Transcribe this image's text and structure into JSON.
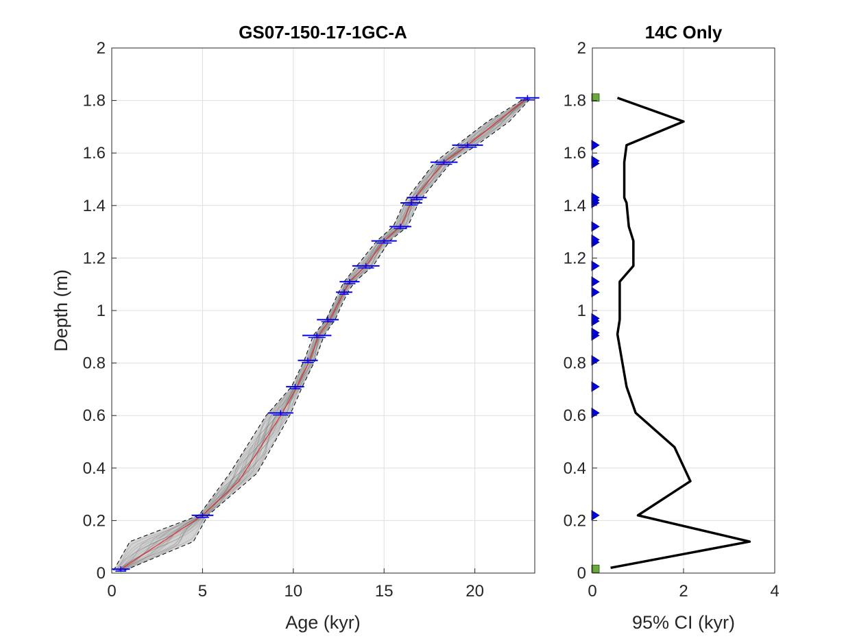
{
  "chart_data": [
    {
      "type": "line",
      "title": "GS07-150-17-1GC-A",
      "xlabel": "Age (kyr)",
      "ylabel": "Depth (m)",
      "xlim": [
        0,
        23.3
      ],
      "ylim": [
        0,
        2
      ],
      "xticks": [
        "0",
        "5",
        "10",
        "15",
        "20"
      ],
      "yticks": [
        "0",
        "0.2",
        "0.4",
        "0.6",
        "0.8",
        "1",
        "1.2",
        "1.4",
        "1.6",
        "1.8",
        "2"
      ],
      "grid": true,
      "colors": {
        "median": "#e03030",
        "bounds": "#000000",
        "ensemble": "#808080",
        "dates": "#0000ee"
      },
      "series": [
        {
          "values": [
            [
              0.4,
              0.01
            ],
            [
              5.0,
              0.22
            ],
            [
              7.0,
              0.35
            ],
            [
              9.4,
              0.61
            ],
            [
              10.2,
              0.71
            ],
            [
              10.9,
              0.81
            ],
            [
              11.4,
              0.905
            ],
            [
              12.0,
              0.965
            ],
            [
              12.8,
              1.07
            ],
            [
              13.1,
              1.11
            ],
            [
              14.0,
              1.17
            ],
            [
              15.0,
              1.265
            ],
            [
              15.9,
              1.32
            ],
            [
              16.5,
              1.41
            ],
            [
              16.7,
              1.43
            ],
            [
              18.3,
              1.565
            ],
            [
              19.6,
              1.63
            ],
            [
              22.9,
              1.81
            ]
          ]
        },
        {
          "values": [
            [
              0.1,
              0.01
            ],
            [
              1.0,
              0.12
            ],
            [
              4.8,
              0.22
            ],
            [
              6.5,
              0.38
            ],
            [
              8.5,
              0.6
            ],
            [
              9.9,
              0.71
            ],
            [
              10.6,
              0.81
            ],
            [
              11.1,
              0.905
            ],
            [
              11.8,
              0.965
            ],
            [
              12.5,
              1.07
            ],
            [
              12.8,
              1.11
            ],
            [
              13.5,
              1.17
            ],
            [
              14.6,
              1.265
            ],
            [
              15.5,
              1.32
            ],
            [
              16.1,
              1.41
            ],
            [
              16.3,
              1.43
            ],
            [
              17.8,
              1.565
            ],
            [
              19.0,
              1.63
            ],
            [
              20.7,
              1.72
            ],
            [
              22.8,
              1.81
            ]
          ]
        },
        {
          "values": [
            [
              0.7,
              0.01
            ],
            [
              4.5,
              0.12
            ],
            [
              5.3,
              0.22
            ],
            [
              8.0,
              0.38
            ],
            [
              9.8,
              0.6
            ],
            [
              10.5,
              0.71
            ],
            [
              11.2,
              0.81
            ],
            [
              11.7,
              0.905
            ],
            [
              12.3,
              0.965
            ],
            [
              13.0,
              1.07
            ],
            [
              13.4,
              1.11
            ],
            [
              14.4,
              1.17
            ],
            [
              15.3,
              1.265
            ],
            [
              16.3,
              1.32
            ],
            [
              16.9,
              1.41
            ],
            [
              17.1,
              1.43
            ],
            [
              18.7,
              1.565
            ],
            [
              20.1,
              1.63
            ],
            [
              21.9,
              1.72
            ],
            [
              23.1,
              1.81
            ]
          ]
        }
      ],
      "dates": [
        {
          "age": 0.5,
          "depth": 0.015,
          "err": 0.5
        },
        {
          "age": 5.0,
          "depth": 0.22,
          "err": 0.6
        },
        {
          "age": 9.3,
          "depth": 0.61,
          "err": 0.7
        },
        {
          "age": 10.1,
          "depth": 0.71,
          "err": 0.5
        },
        {
          "age": 10.8,
          "depth": 0.81,
          "err": 0.55
        },
        {
          "age": 11.3,
          "depth": 0.905,
          "err": 0.8
        },
        {
          "age": 11.9,
          "depth": 0.965,
          "err": 0.6
        },
        {
          "age": 12.8,
          "depth": 1.07,
          "err": 0.45
        },
        {
          "age": 13.1,
          "depth": 1.11,
          "err": 0.55
        },
        {
          "age": 14.0,
          "depth": 1.17,
          "err": 0.75
        },
        {
          "age": 15.0,
          "depth": 1.265,
          "err": 0.7
        },
        {
          "age": 15.9,
          "depth": 1.32,
          "err": 0.6
        },
        {
          "age": 16.5,
          "depth": 1.41,
          "err": 0.6
        },
        {
          "age": 16.8,
          "depth": 1.43,
          "err": 0.55
        },
        {
          "age": 18.3,
          "depth": 1.565,
          "err": 0.75
        },
        {
          "age": 19.6,
          "depth": 1.63,
          "err": 0.85
        },
        {
          "age": 22.9,
          "depth": 1.81,
          "err": 0.65
        }
      ]
    },
    {
      "type": "line",
      "title": "14C Only",
      "xlabel": "95% CI (kyr)",
      "ylabel": "",
      "xlim": [
        0,
        4
      ],
      "ylim": [
        0,
        2
      ],
      "xticks": [
        "0",
        "2",
        "4"
      ],
      "yticks": [
        "0",
        "0.2",
        "0.4",
        "0.6",
        "0.8",
        "1",
        "1.2",
        "1.4",
        "1.6",
        "1.8",
        "2"
      ],
      "grid": true,
      "colors": {
        "line": "#000000",
        "marker": "#0000ee",
        "square": "#6aaa3a"
      },
      "series": [
        {
          "values": [
            [
              0.4,
              0.02
            ],
            [
              3.45,
              0.12
            ],
            [
              1.0,
              0.22
            ],
            [
              2.15,
              0.35
            ],
            [
              1.8,
              0.48
            ],
            [
              0.95,
              0.61
            ],
            [
              0.75,
              0.71
            ],
            [
              0.65,
              0.81
            ],
            [
              0.55,
              0.91
            ],
            [
              0.6,
              0.965
            ],
            [
              0.6,
              1.07
            ],
            [
              0.6,
              1.11
            ],
            [
              0.9,
              1.17
            ],
            [
              0.9,
              1.265
            ],
            [
              0.8,
              1.32
            ],
            [
              0.75,
              1.41
            ],
            [
              0.7,
              1.43
            ],
            [
              0.7,
              1.565
            ],
            [
              0.75,
              1.63
            ],
            [
              2.0,
              1.72
            ],
            [
              0.55,
              1.81
            ]
          ]
        }
      ],
      "markers_triangle": [
        0.22,
        0.61,
        0.71,
        0.81,
        0.905,
        0.915,
        0.96,
        0.97,
        1.07,
        1.11,
        1.17,
        1.26,
        1.27,
        1.32,
        1.41,
        1.42,
        1.43,
        1.56,
        1.57,
        1.63
      ],
      "markers_square": [
        0.015,
        1.81
      ]
    }
  ]
}
